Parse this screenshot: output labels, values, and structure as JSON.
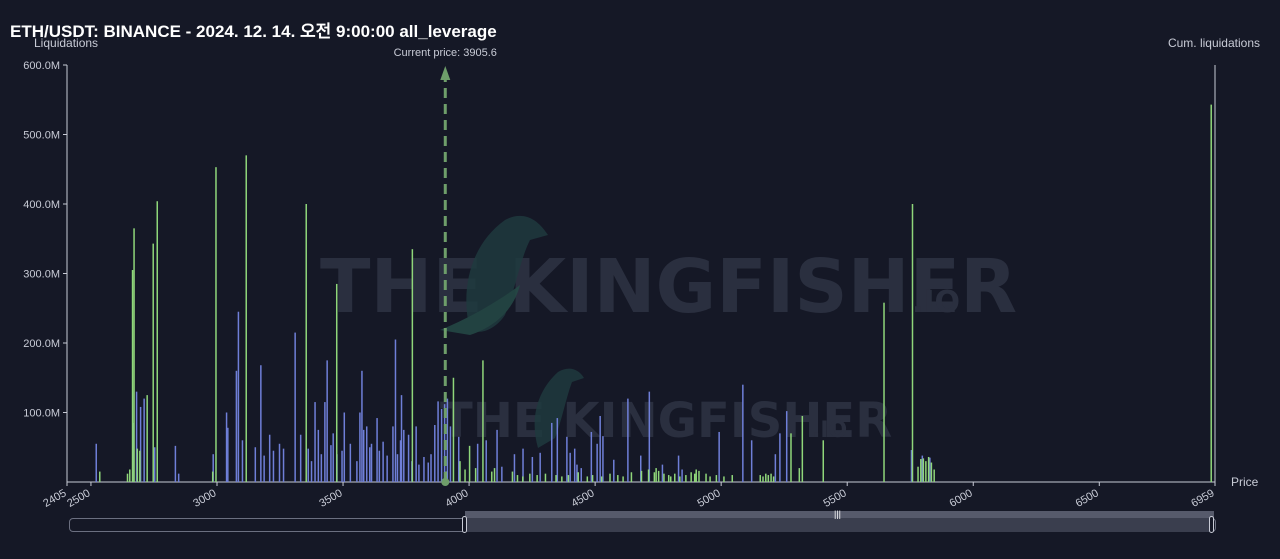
{
  "header": {
    "title": "ETH/USDT: BINANCE - 2024. 12. 14. 오전 9:00:00 all_leverage",
    "current_price_label": "Current price: 3905.6"
  },
  "axes": {
    "y_label": "Liquidations",
    "y2_label": "Cum. liquidations",
    "x_label": "Price"
  },
  "watermark": {
    "brand": "THE KINGFISHER",
    "suffix": ".IO"
  },
  "colors": {
    "background": "#151826",
    "short_bars": "#8fd67a",
    "long_bars": "#6f7fd8",
    "current_price": "#6e9e6a"
  },
  "chart_data": {
    "type": "bar",
    "title": "ETH/USDT: BINANCE - 2024. 12. 14. 오전 9:00:00 all_leverage",
    "xlabel": "Price",
    "ylabel": "Liquidations",
    "y2label": "Cum. liquidations",
    "xlim": [
      2405,
      6959
    ],
    "ylim": [
      0,
      600000000
    ],
    "x_ticks": [
      "2405",
      "2500",
      "3000",
      "3500",
      "4000",
      "4500",
      "5000",
      "5500",
      "6000",
      "6500",
      "6959"
    ],
    "y_ticks": [
      "600.0M",
      "500.0M",
      "400.0M",
      "300.0M",
      "200.0M",
      "100.0M"
    ],
    "current_price": 3905.6,
    "grid": false,
    "series": [
      {
        "color": "#6f7fd8",
        "points": [
          [
            2521,
            55
          ],
          [
            2668,
            85
          ],
          [
            2681,
            130
          ],
          [
            2697,
            108
          ],
          [
            2711,
            120
          ],
          [
            2753,
            50
          ],
          [
            2835,
            52
          ],
          [
            2848,
            12
          ],
          [
            2985,
            40
          ],
          [
            3038,
            100
          ],
          [
            3043,
            78
          ],
          [
            3077,
            160
          ],
          [
            3085,
            245
          ],
          [
            3101,
            60
          ],
          [
            3152,
            50
          ],
          [
            3174,
            168
          ],
          [
            3187,
            38
          ],
          [
            3209,
            68
          ],
          [
            3224,
            45
          ],
          [
            3248,
            55
          ],
          [
            3264,
            48
          ],
          [
            3310,
            215
          ],
          [
            3332,
            68
          ],
          [
            3362,
            48
          ],
          [
            3375,
            30
          ],
          [
            3389,
            115
          ],
          [
            3402,
            75
          ],
          [
            3414,
            40
          ],
          [
            3428,
            115
          ],
          [
            3437,
            175
          ],
          [
            3452,
            53
          ],
          [
            3461,
            70
          ],
          [
            3476,
            40
          ],
          [
            3496,
            45
          ],
          [
            3505,
            100
          ],
          [
            3529,
            55
          ],
          [
            3555,
            30
          ],
          [
            3567,
            100
          ],
          [
            3575,
            160
          ],
          [
            3582,
            75
          ],
          [
            3594,
            80
          ],
          [
            3606,
            50
          ],
          [
            3613,
            55
          ],
          [
            3635,
            92
          ],
          [
            3644,
            45
          ],
          [
            3659,
            58
          ],
          [
            3675,
            38
          ],
          [
            3698,
            80
          ],
          [
            3708,
            205
          ],
          [
            3716,
            40
          ],
          [
            3728,
            60
          ],
          [
            3732,
            125
          ],
          [
            3741,
            75
          ],
          [
            3760,
            68
          ],
          [
            3773,
            30
          ],
          [
            3790,
            80
          ],
          [
            3801,
            25
          ],
          [
            3821,
            36
          ],
          [
            3838,
            28
          ],
          [
            3849,
            40
          ],
          [
            3864,
            82
          ],
          [
            3877,
            116
          ],
          [
            3891,
            105
          ],
          [
            3903,
            112
          ],
          [
            3914,
            120
          ],
          [
            3926,
            80
          ],
          [
            3959,
            65
          ],
          [
            4034,
            55
          ],
          [
            4068,
            60
          ],
          [
            4111,
            75
          ],
          [
            4130,
            22
          ],
          [
            4180,
            40
          ],
          [
            4214,
            48
          ],
          [
            4251,
            36
          ],
          [
            4282,
            42
          ],
          [
            4328,
            85
          ],
          [
            4350,
            92
          ],
          [
            4388,
            65
          ],
          [
            4401,
            42
          ],
          [
            4419,
            48
          ],
          [
            4428,
            25
          ],
          [
            4445,
            20
          ],
          [
            4485,
            72
          ],
          [
            4508,
            55
          ],
          [
            4520,
            95
          ],
          [
            4531,
            66
          ],
          [
            4574,
            32
          ],
          [
            4630,
            120
          ],
          [
            4681,
            38
          ],
          [
            4715,
            130
          ],
          [
            4767,
            25
          ],
          [
            4831,
            38
          ],
          [
            4845,
            18
          ],
          [
            4992,
            72
          ],
          [
            5086,
            140
          ],
          [
            5121,
            60
          ],
          [
            5215,
            40
          ],
          [
            5233,
            70
          ],
          [
            5260,
            102
          ],
          [
            5755,
            46
          ],
          [
            5798,
            38
          ],
          [
            5828,
            35
          ]
        ]
      },
      {
        "color": "#8fd67a",
        "points": [
          [
            2535,
            15
          ],
          [
            2645,
            12
          ],
          [
            2654,
            18
          ],
          [
            2665,
            305
          ],
          [
            2671,
            365
          ],
          [
            2684,
            48
          ],
          [
            2694,
            45
          ],
          [
            2723,
            125
          ],
          [
            2747,
            343
          ],
          [
            2763,
            404
          ],
          [
            2983,
            15
          ],
          [
            2996,
            453
          ],
          [
            3116,
            470
          ],
          [
            3354,
            400
          ],
          [
            3475,
            285
          ],
          [
            3775,
            335
          ],
          [
            3909,
            15
          ],
          [
            3938,
            150
          ],
          [
            3964,
            30
          ],
          [
            3984,
            18
          ],
          [
            4002,
            52
          ],
          [
            4026,
            20
          ],
          [
            4055,
            175
          ],
          [
            4090,
            15
          ],
          [
            4101,
            20
          ],
          [
            4172,
            15
          ],
          [
            4192,
            10
          ],
          [
            4213,
            8
          ],
          [
            4241,
            12
          ],
          [
            4270,
            10
          ],
          [
            4303,
            12
          ],
          [
            4345,
            10
          ],
          [
            4368,
            8
          ],
          [
            4394,
            10
          ],
          [
            4433,
            14
          ],
          [
            4469,
            8
          ],
          [
            4490,
            10
          ],
          [
            4526,
            8
          ],
          [
            4559,
            12
          ],
          [
            4590,
            10
          ],
          [
            4611,
            8
          ],
          [
            4644,
            14
          ],
          [
            4684,
            16
          ],
          [
            4712,
            18
          ],
          [
            4735,
            14
          ],
          [
            4742,
            20
          ],
          [
            4752,
            16
          ],
          [
            4773,
            12
          ],
          [
            4792,
            10
          ],
          [
            4800,
            8
          ],
          [
            4816,
            12
          ],
          [
            4836,
            8
          ],
          [
            4860,
            10
          ],
          [
            4881,
            14
          ],
          [
            4895,
            12
          ],
          [
            4901,
            18
          ],
          [
            4912,
            16
          ],
          [
            4940,
            12
          ],
          [
            4956,
            8
          ],
          [
            4981,
            10
          ],
          [
            5011,
            8
          ],
          [
            5044,
            10
          ],
          [
            5155,
            10
          ],
          [
            5166,
            8
          ],
          [
            5177,
            12
          ],
          [
            5187,
            10
          ],
          [
            5198,
            12
          ],
          [
            5208,
            8
          ],
          [
            5277,
            70
          ],
          [
            5310,
            20
          ],
          [
            5322,
            95
          ],
          [
            5405,
            60
          ],
          [
            5646,
            258
          ],
          [
            5759,
            400
          ],
          [
            5781,
            22
          ],
          [
            5792,
            33
          ],
          [
            5802,
            34
          ],
          [
            5812,
            30
          ],
          [
            5823,
            36
          ],
          [
            5834,
            28
          ],
          [
            5845,
            18
          ],
          [
            6944,
            543
          ]
        ]
      }
    ]
  }
}
